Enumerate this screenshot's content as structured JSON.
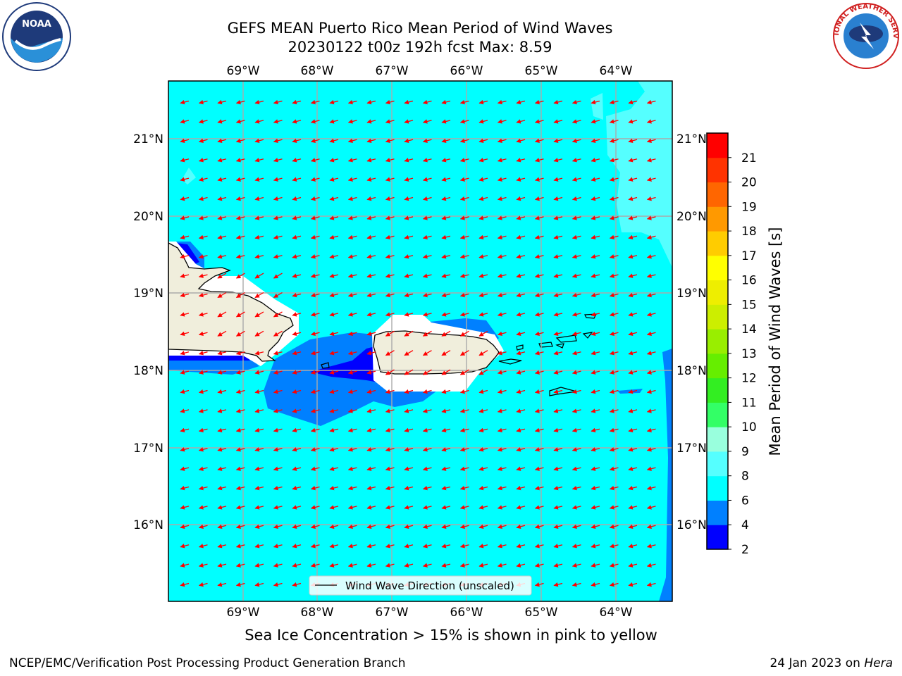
{
  "header": {
    "title_line1": "GEFS MEAN Puerto Rico Mean Period of Wind Waves",
    "title_line2": "20230122 t00z 192h fcst   Max: 8.59"
  },
  "logos": {
    "left": "noaa-logo",
    "right": "nws-logo",
    "noaa_text": "NOAA",
    "nws_text": "NATIONAL WEATHER SERVICE"
  },
  "map": {
    "lon_labels": [
      "69°W",
      "68°W",
      "67°W",
      "66°W",
      "65°W",
      "64°W"
    ],
    "lat_labels": [
      "21°N",
      "20°N",
      "19°N",
      "18°N",
      "17°N",
      "16°N"
    ],
    "legend_label": "Wind Wave Direction (unscaled)",
    "colors": {
      "ocean": "#00ffff",
      "light": "#55ffff",
      "mid_blue": "#0080ff",
      "dark_blue": "#0000ff",
      "land": "#f0eedc",
      "arrow": "#ff0000"
    }
  },
  "colorbar": {
    "label": "Mean Period of Wind Waves [s]",
    "ticks": [
      "2",
      "4",
      "6",
      "8",
      "9",
      "10",
      "11",
      "12",
      "13",
      "14",
      "15",
      "16",
      "17",
      "18",
      "19",
      "20",
      "21"
    ],
    "colors": [
      "#0000ff",
      "#0080ff",
      "#00ffff",
      "#55ffff",
      "#99ffdd",
      "#33ff66",
      "#33ee22",
      "#66ee00",
      "#99ee00",
      "#ccee00",
      "#eeee00",
      "#ffff00",
      "#ffcc00",
      "#ff9900",
      "#ff6600",
      "#ff3300",
      "#ff0000"
    ]
  },
  "footer": {
    "ice_note": "Sea Ice Concentration > 15% is shown in pink to yellow",
    "left": "NCEP/EMC/Verification Post Processing Product Generation Branch",
    "right_date": "24 Jan 2023 on ",
    "right_machine": "Hera"
  }
}
